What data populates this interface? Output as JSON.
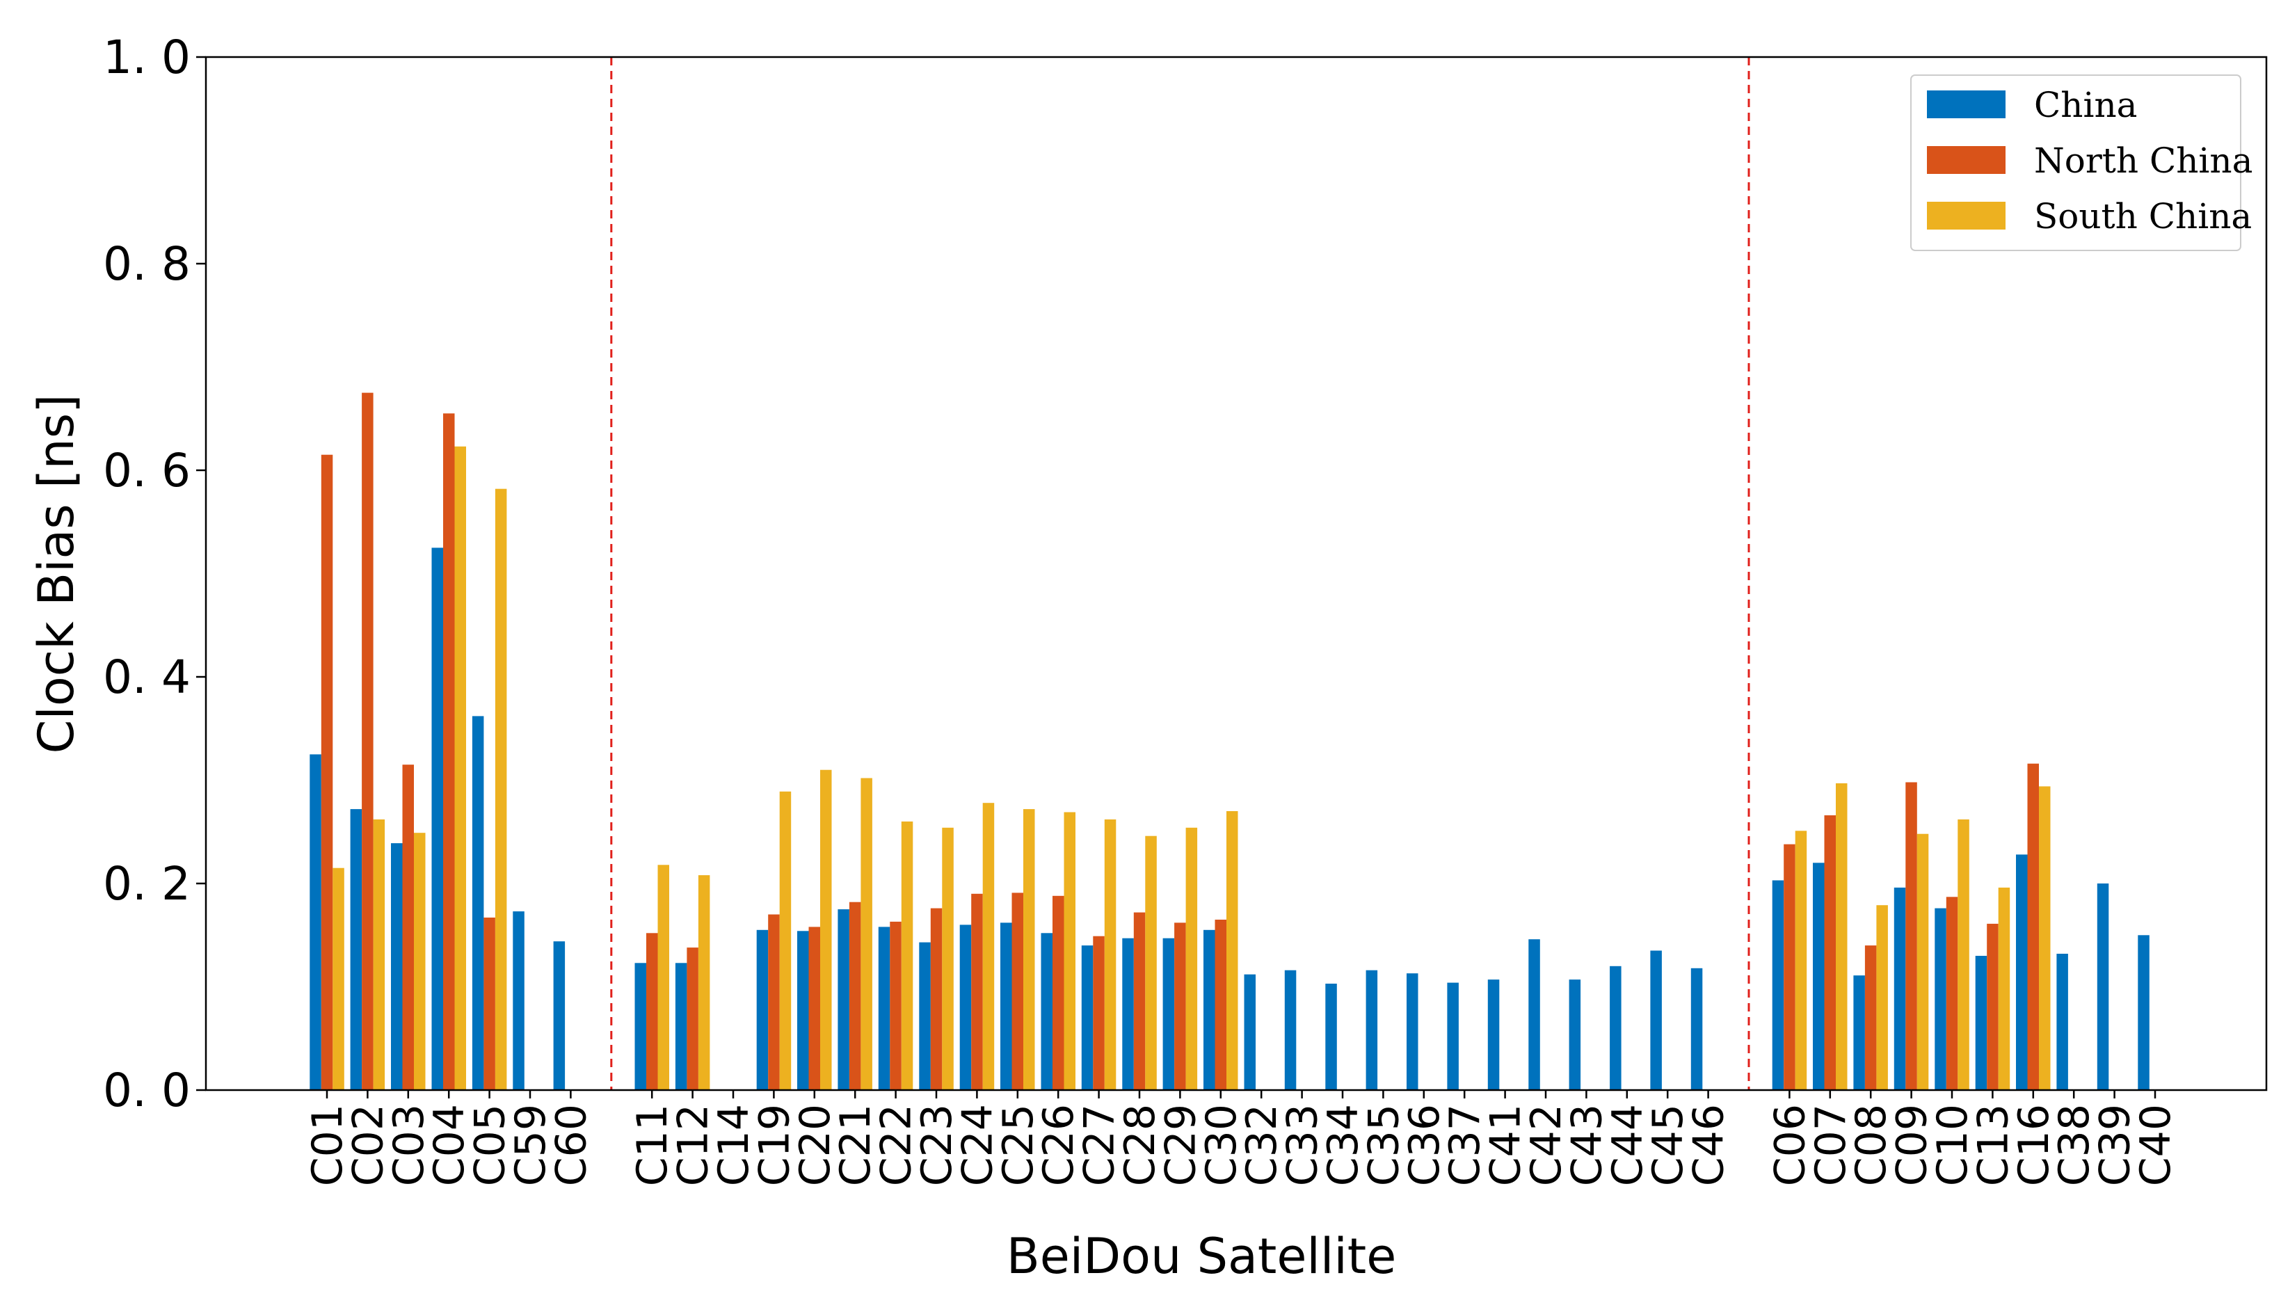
{
  "chart_data": {
    "type": "bar",
    "xlabel": "BeiDou Satellite",
    "ylabel": "Clock Bias [ns]",
    "ylim": [
      0,
      1.0
    ],
    "yticks": [
      "0. 0",
      "0. 2",
      "0. 4",
      "0. 6",
      "0. 8",
      "1. 0"
    ],
    "grid": false,
    "legend_position": "top-right",
    "groups": [
      [
        "C01",
        "C02",
        "C03",
        "C04",
        "C05",
        "C59",
        "C60"
      ],
      [
        "C11",
        "C12",
        "C14",
        "C19",
        "C20",
        "C21",
        "C22",
        "C23",
        "C24",
        "C25",
        "C26",
        "C27",
        "C28",
        "C29",
        "C30",
        "C32",
        "C33",
        "C34",
        "C35",
        "C36",
        "C37",
        "C41",
        "C42",
        "C43",
        "C44",
        "C45",
        "C46"
      ],
      [
        "C06",
        "C07",
        "C08",
        "C09",
        "C10",
        "C13",
        "C16",
        "C38",
        "C39",
        "C40"
      ]
    ],
    "categories": [
      "C01",
      "C02",
      "C03",
      "C04",
      "C05",
      "C59",
      "C60",
      "C11",
      "C12",
      "C14",
      "C19",
      "C20",
      "C21",
      "C22",
      "C23",
      "C24",
      "C25",
      "C26",
      "C27",
      "C28",
      "C29",
      "C30",
      "C32",
      "C33",
      "C34",
      "C35",
      "C36",
      "C37",
      "C41",
      "C42",
      "C43",
      "C44",
      "C45",
      "C46",
      "C06",
      "C07",
      "C08",
      "C09",
      "C10",
      "C13",
      "C16",
      "C38",
      "C39",
      "C40"
    ],
    "series": [
      {
        "name": "China",
        "color": "#0072bd",
        "values": [
          0.325,
          0.272,
          0.239,
          0.525,
          0.362,
          0.173,
          0.144,
          0.123,
          0.123,
          null,
          0.155,
          0.154,
          0.175,
          0.158,
          0.143,
          0.16,
          0.162,
          0.152,
          0.14,
          0.147,
          0.147,
          0.155,
          0.112,
          0.116,
          0.103,
          0.116,
          0.113,
          0.104,
          0.107,
          0.146,
          0.107,
          0.12,
          0.135,
          0.118,
          0.203,
          0.22,
          0.111,
          0.196,
          0.176,
          0.13,
          0.228,
          0.132,
          0.2,
          0.15
        ]
      },
      {
        "name": "North China",
        "color": "#d95319",
        "values": [
          0.615,
          0.675,
          0.315,
          0.655,
          0.167,
          null,
          null,
          0.152,
          0.138,
          null,
          0.17,
          0.158,
          0.182,
          0.163,
          0.176,
          0.19,
          0.191,
          0.188,
          0.149,
          0.172,
          0.162,
          0.165,
          null,
          null,
          null,
          null,
          null,
          null,
          null,
          null,
          null,
          null,
          null,
          null,
          0.238,
          0.266,
          0.14,
          0.298,
          0.187,
          0.161,
          0.316,
          null,
          null,
          null
        ]
      },
      {
        "name": "South China",
        "color": "#edb120",
        "values": [
          0.215,
          0.262,
          0.249,
          0.623,
          0.582,
          null,
          null,
          0.218,
          0.208,
          null,
          0.289,
          0.31,
          0.302,
          0.26,
          0.254,
          0.278,
          0.272,
          0.269,
          0.262,
          0.246,
          0.254,
          0.27,
          null,
          null,
          null,
          null,
          null,
          null,
          null,
          null,
          null,
          null,
          null,
          null,
          0.251,
          0.297,
          0.179,
          0.248,
          0.262,
          0.196,
          0.294,
          null,
          null,
          null
        ]
      }
    ],
    "separators_after_groups": [
      0,
      1
    ],
    "separator_color": "#e0201b"
  }
}
